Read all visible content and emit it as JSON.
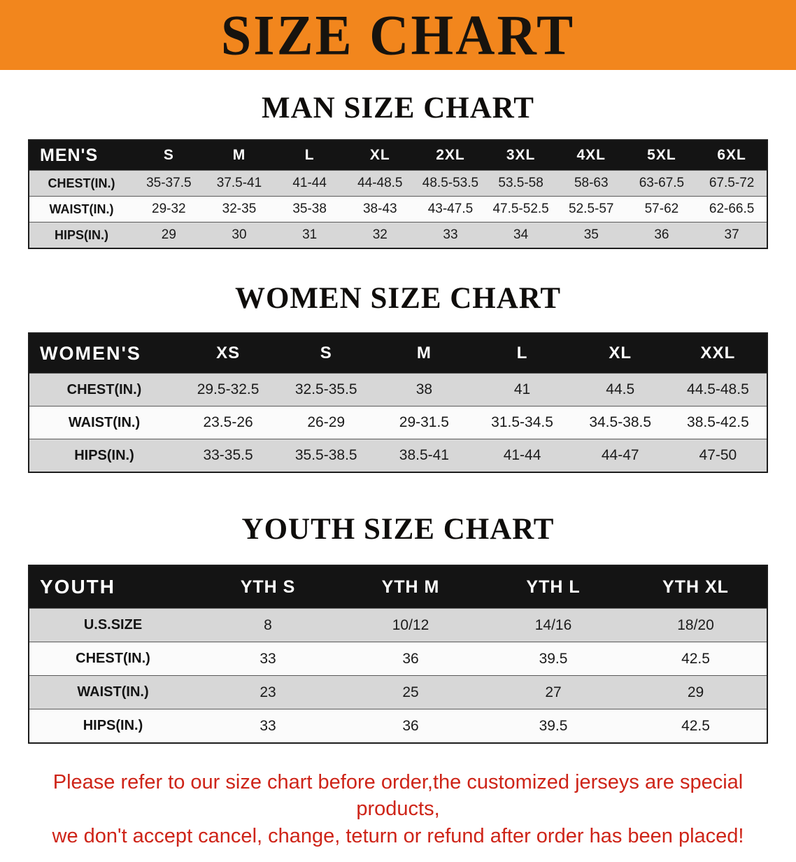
{
  "banner": {
    "title": "SIZE CHART",
    "bg_color": "#F2861D",
    "text_color": "#17130E"
  },
  "chart_data": [
    {
      "type": "table",
      "id": "men",
      "title": "MAN SIZE CHART",
      "columns": [
        "MEN'S",
        "S",
        "M",
        "L",
        "XL",
        "2XL",
        "3XL",
        "4XL",
        "5XL",
        "6XL"
      ],
      "rows": [
        [
          "CHEST(IN.)",
          "35-37.5",
          "37.5-41",
          "41-44",
          "44-48.5",
          "48.5-53.5",
          "53.5-58",
          "58-63",
          "63-67.5",
          "67.5-72"
        ],
        [
          "WAIST(IN.)",
          "29-32",
          "32-35",
          "35-38",
          "38-43",
          "43-47.5",
          "47.5-52.5",
          "52.5-57",
          "57-62",
          "62-66.5"
        ],
        [
          "HIPS(IN.)",
          "29",
          "30",
          "31",
          "32",
          "33",
          "34",
          "35",
          "36",
          "37"
        ]
      ]
    },
    {
      "type": "table",
      "id": "women",
      "title": "WOMEN SIZE CHART",
      "columns": [
        "WOMEN'S",
        "XS",
        "S",
        "M",
        "L",
        "XL",
        "XXL"
      ],
      "rows": [
        [
          "CHEST(IN.)",
          "29.5-32.5",
          "32.5-35.5",
          "38",
          "41",
          "44.5",
          "44.5-48.5"
        ],
        [
          "WAIST(IN.)",
          "23.5-26",
          "26-29",
          "29-31.5",
          "31.5-34.5",
          "34.5-38.5",
          "38.5-42.5"
        ],
        [
          "HIPS(IN.)",
          "33-35.5",
          "35.5-38.5",
          "38.5-41",
          "41-44",
          "44-47",
          "47-50"
        ]
      ]
    },
    {
      "type": "table",
      "id": "youth",
      "title": "YOUTH SIZE CHART",
      "columns": [
        "YOUTH",
        "YTH S",
        "YTH M",
        "YTH L",
        "YTH XL"
      ],
      "rows": [
        [
          "U.S.SIZE",
          "8",
          "10/12",
          "14/16",
          "18/20"
        ],
        [
          "CHEST(IN.)",
          "33",
          "36",
          "39.5",
          "42.5"
        ],
        [
          "WAIST(IN.)",
          "23",
          "25",
          "27",
          "29"
        ],
        [
          "HIPS(IN.)",
          "33",
          "36",
          "39.5",
          "42.5"
        ]
      ]
    }
  ],
  "colors": {
    "header_bg": "#141414",
    "header_text": "#FFFFFF",
    "row_gray": "#D7D7D7",
    "row_white": "#FBFBFB"
  },
  "disclaimer": {
    "text_color": "#CE2418",
    "lines": [
      "Please refer to our size chart before order,the customized jerseys are special products,",
      "we don't accept cancel, change, teturn or refund after order has been placed!"
    ]
  }
}
